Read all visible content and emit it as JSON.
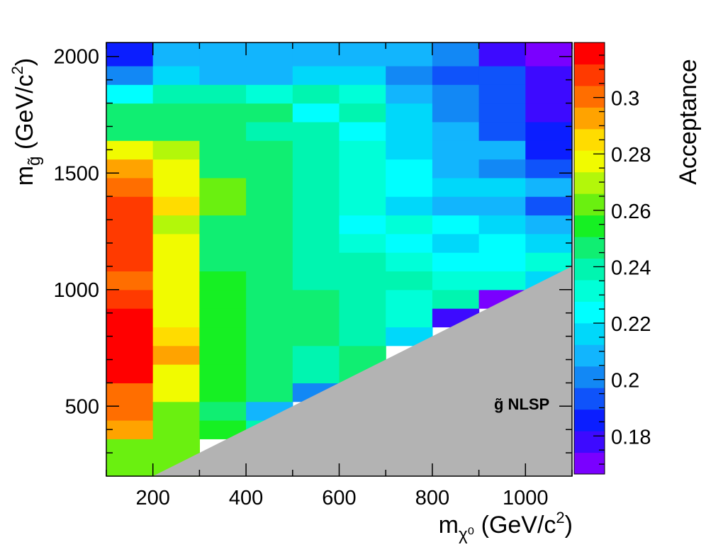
{
  "chart_data": {
    "type": "heatmap",
    "xlabel": "m_χ⁰ (GeV/c²)",
    "ylabel": "m_g̃ (GeV/c²)",
    "colorbar_label": "Acceptance",
    "annotation": "g̃ NLSP",
    "xlim": [
      100,
      1100
    ],
    "ylim": [
      200,
      2060
    ],
    "x_ticks": [
      200,
      400,
      600,
      800,
      1000
    ],
    "y_ticks": [
      500,
      1000,
      1500,
      2000
    ],
    "z_range": [
      0.1665,
      0.3195
    ],
    "z_ticks": [
      0.18,
      0.2,
      0.22,
      0.24,
      0.26,
      0.28,
      0.3
    ],
    "x_bin_edges": [
      100,
      200,
      300,
      400,
      500,
      600,
      700,
      800,
      900,
      1000,
      1100
    ],
    "y_bin_edges": [
      200,
      360,
      440,
      520,
      600,
      680,
      760,
      840,
      920,
      1000,
      1080,
      1160,
      1240,
      1320,
      1400,
      1480,
      1560,
      1640,
      1720,
      1800,
      1880,
      1960,
      2060
    ],
    "z": [
      [
        0.262,
        0.262,
        null,
        null,
        null,
        null,
        null,
        null,
        null,
        null
      ],
      [
        0.294,
        0.262,
        0.258,
        0.242,
        null,
        null,
        null,
        null,
        null,
        null
      ],
      [
        0.302,
        0.262,
        0.25,
        0.21,
        null,
        null,
        null,
        null,
        null,
        null
      ],
      [
        0.302,
        0.278,
        0.258,
        0.25,
        0.198,
        null,
        null,
        null,
        null,
        null
      ],
      [
        0.318,
        0.278,
        0.258,
        0.25,
        0.238,
        0.246,
        null,
        null,
        null,
        null
      ],
      [
        0.318,
        0.294,
        0.258,
        0.25,
        0.238,
        0.246,
        null,
        null,
        null,
        null
      ],
      [
        0.318,
        0.286,
        0.258,
        0.25,
        0.246,
        0.242,
        0.218,
        null,
        null,
        null
      ],
      [
        0.318,
        0.278,
        0.258,
        0.25,
        0.246,
        0.242,
        0.23,
        0.178,
        null,
        null
      ],
      [
        0.31,
        0.278,
        0.258,
        0.246,
        0.246,
        0.242,
        0.234,
        0.242,
        0.174,
        null
      ],
      [
        0.302,
        0.278,
        0.258,
        0.246,
        0.242,
        0.242,
        0.242,
        0.234,
        0.234,
        0.218
      ],
      [
        0.31,
        0.278,
        0.25,
        0.246,
        0.242,
        0.238,
        0.234,
        0.226,
        0.226,
        0.23
      ],
      [
        0.31,
        0.278,
        0.25,
        0.246,
        0.242,
        0.234,
        0.226,
        0.218,
        0.226,
        0.218
      ],
      [
        0.31,
        0.27,
        0.25,
        0.246,
        0.242,
        0.226,
        0.23,
        0.226,
        0.218,
        0.21
      ],
      [
        0.31,
        0.286,
        0.262,
        0.246,
        0.242,
        0.234,
        0.218,
        0.21,
        0.21,
        0.19
      ],
      [
        0.302,
        0.278,
        0.262,
        0.246,
        0.238,
        0.234,
        0.226,
        0.218,
        0.218,
        0.21
      ],
      [
        0.294,
        0.278,
        0.25,
        0.246,
        0.238,
        0.234,
        0.226,
        0.21,
        0.198,
        0.19
      ],
      [
        0.278,
        0.266,
        0.25,
        0.246,
        0.238,
        0.234,
        0.218,
        0.21,
        0.21,
        0.182
      ],
      [
        0.25,
        0.25,
        0.25,
        0.242,
        0.242,
        0.226,
        0.218,
        0.21,
        0.19,
        0.182
      ],
      [
        0.25,
        0.25,
        0.25,
        0.25,
        0.226,
        0.238,
        0.218,
        0.198,
        0.19,
        0.178
      ],
      [
        0.226,
        0.238,
        0.238,
        0.23,
        0.238,
        0.23,
        0.21,
        0.198,
        0.19,
        0.178
      ],
      [
        0.198,
        0.218,
        0.21,
        0.21,
        0.218,
        0.218,
        0.198,
        0.19,
        0.19,
        0.178
      ],
      [
        0.186,
        0.206,
        0.206,
        0.21,
        0.21,
        0.21,
        0.21,
        0.202,
        0.178,
        0.174
      ]
    ],
    "excluded_region": {
      "label": "g̃ NLSP",
      "color": "#b3b3b3",
      "polygon": [
        [
          200,
          200
        ],
        [
          1100,
          1100
        ],
        [
          1100,
          200
        ]
      ]
    },
    "palette": [
      "#7a00ff",
      "#3d0aff",
      "#0b1eff",
      "#0f53fa",
      "#1288f5",
      "#12b5fd",
      "#00d8fa",
      "#00ffff",
      "#00ffd8",
      "#00f5b0",
      "#10ee72",
      "#16f023",
      "#6af010",
      "#b3f70a",
      "#f1fb00",
      "#ffdc00",
      "#ffa300",
      "#ff6e00",
      "#ff3a00",
      "#ff0000"
    ],
    "grid": false,
    "colorbar": "right"
  }
}
